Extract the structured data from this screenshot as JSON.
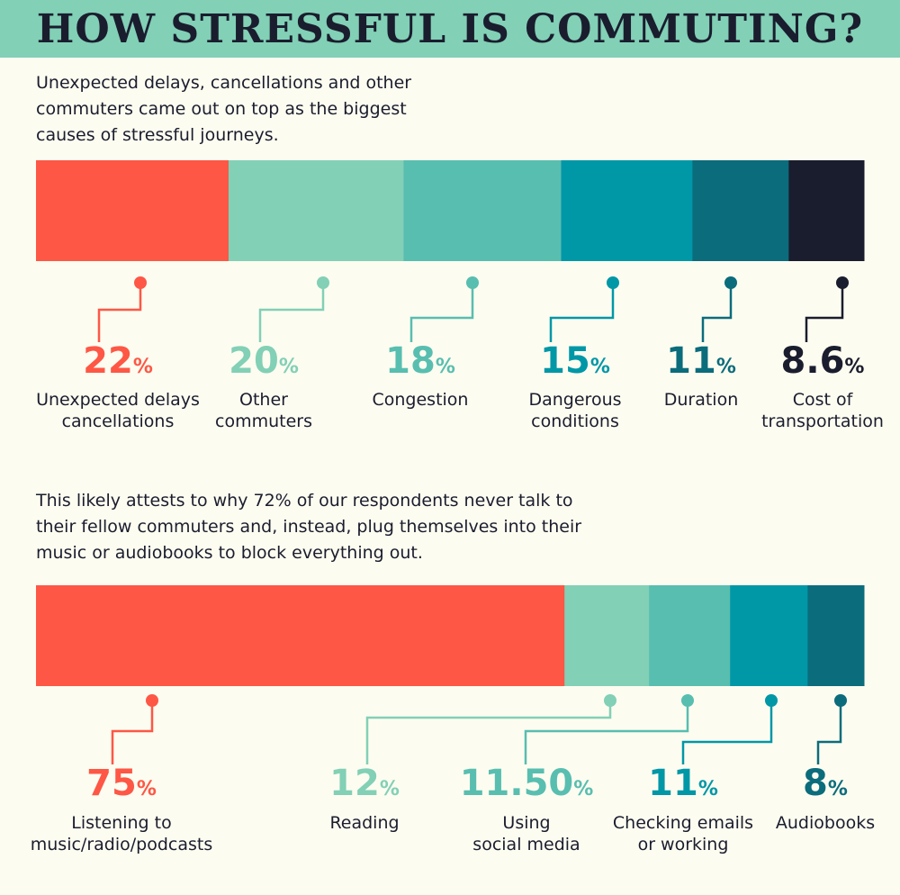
{
  "title": "HOW STRESSFUL IS COMMUTING?",
  "intro1": "Unexpected delays, cancellations and other commuters came out on top as the biggest causes of stressful journeys.",
  "intro2": "This likely attests to why 72% of our respondents never talk to their fellow commuters and, instead, plug themselves into their music or audiobooks to block everything out.",
  "colors": {
    "background": "#fdfcf0",
    "header": "#82d0b6",
    "red": "#fe5745",
    "mint": "#82d0b6",
    "teal": "#58beb0",
    "cyan": "#0097a7",
    "darkteal": "#0b6c7c",
    "navy": "#1a1d2e"
  },
  "chart_data": [
    {
      "type": "bar",
      "stacked": "horizontal",
      "categories": [
        "Unexpected delays cancellations",
        "Other commuters",
        "Congestion",
        "Dangerous conditions",
        "Duration",
        "Cost of transportation"
      ],
      "values": [
        22,
        20,
        18,
        15,
        11,
        8.6
      ],
      "value_labels": [
        "22",
        "20",
        "18",
        "15",
        "11",
        "8.6"
      ],
      "unit": "%",
      "label_lines": [
        [
          "Unexpected delays",
          "cancellations"
        ],
        [
          "Other",
          "commuters"
        ],
        [
          "Congestion"
        ],
        [
          "Dangerous",
          "conditions"
        ],
        [
          "Duration"
        ],
        [
          "Cost of",
          "transportation"
        ]
      ],
      "colors": [
        "#fe5745",
        "#82d0b6",
        "#58beb0",
        "#0097a7",
        "#0b6c7c",
        "#1a1d2e"
      ]
    },
    {
      "type": "bar",
      "stacked": "horizontal",
      "categories": [
        "Listening to music/radio/podcasts",
        "Reading",
        "Using social media",
        "Checking emails or working",
        "Audiobooks"
      ],
      "values": [
        75,
        12,
        11.5,
        11,
        8
      ],
      "value_labels": [
        "75",
        "12",
        "11.50",
        "11",
        "8"
      ],
      "unit": "%",
      "label_lines": [
        [
          "Listening to",
          "music/radio/podcasts"
        ],
        [
          "Reading"
        ],
        [
          "Using",
          "social media"
        ],
        [
          "Checking emails",
          "or working"
        ],
        [
          "Audiobooks"
        ]
      ],
      "colors": [
        "#fe5745",
        "#82d0b6",
        "#58beb0",
        "#0097a7",
        "#0b6c7c"
      ]
    }
  ]
}
